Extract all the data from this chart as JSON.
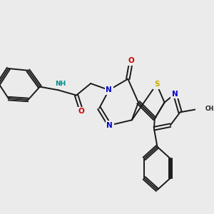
{
  "background_color": "#ebebeb",
  "bond_color": "#1a1a1a",
  "atom_colors": {
    "N": "#0000cc",
    "O": "#cc0000",
    "S": "#ccaa00",
    "NH": "#008888",
    "C": "#1a1a1a"
  },
  "figsize": [
    3.0,
    3.0
  ],
  "dpi": 100
}
